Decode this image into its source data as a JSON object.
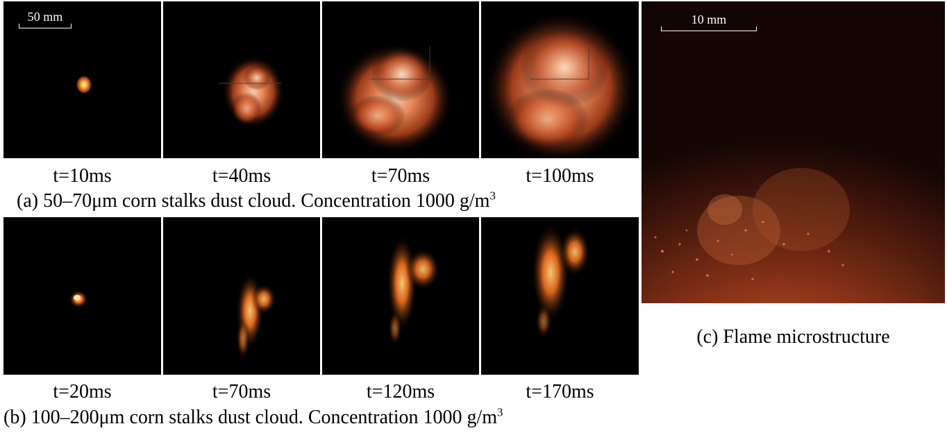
{
  "panel_a": {
    "times": [
      "t=10ms",
      "t=40ms",
      "t=70ms",
      "t=100ms"
    ],
    "caption_main": "(a) 50–70μm corn stalks dust cloud. Concentration 1000 g/m",
    "caption_sup": "3",
    "scale_bar": "50 mm"
  },
  "panel_b": {
    "times": [
      "t=20ms",
      "t=70ms",
      "t=120ms",
      "t=170ms"
    ],
    "caption_main": "(b) 100–200μm corn stalks dust cloud. Concentration 1000 g/m",
    "caption_sup": "3"
  },
  "panel_c": {
    "caption": "(c) Flame microstructure",
    "scale_bar": "10 mm"
  }
}
